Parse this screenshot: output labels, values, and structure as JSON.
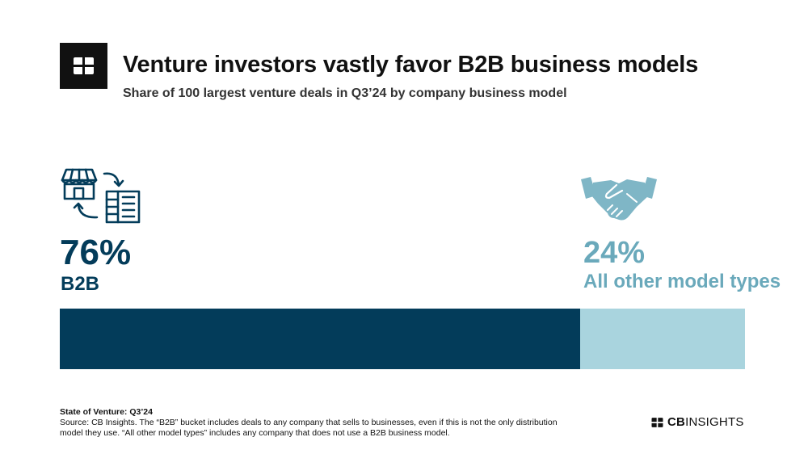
{
  "header": {
    "title": "Venture investors vastly favor B2B business models",
    "subtitle": "Share of 100 largest venture deals in Q3’24 by company business model"
  },
  "icons": {
    "logo": "cb-insights-logo-icon",
    "b2b": "storefront-buildings-exchange-icon",
    "other": "handshake-icon"
  },
  "colors": {
    "b2b": "#033c5a",
    "other": "#a9d4de",
    "other_text": "#6aa9bb"
  },
  "chart_data": {
    "type": "bar",
    "orientation": "horizontal-stacked",
    "categories": [
      "B2B",
      "All other model types"
    ],
    "values": [
      76,
      24
    ],
    "value_labels": [
      "76%",
      "24%"
    ],
    "unit": "%"
  },
  "footer": {
    "title": "State of Venture: Q3’24",
    "source": "Source: CB Insights. The “B2B” bucket includes deals to any company that sells to businesses, even if this is not the only distribution model they use. “All other model types” includes any company that does not use a B2B business model.",
    "brand_bold": "CB",
    "brand_light": "INSIGHTS"
  }
}
